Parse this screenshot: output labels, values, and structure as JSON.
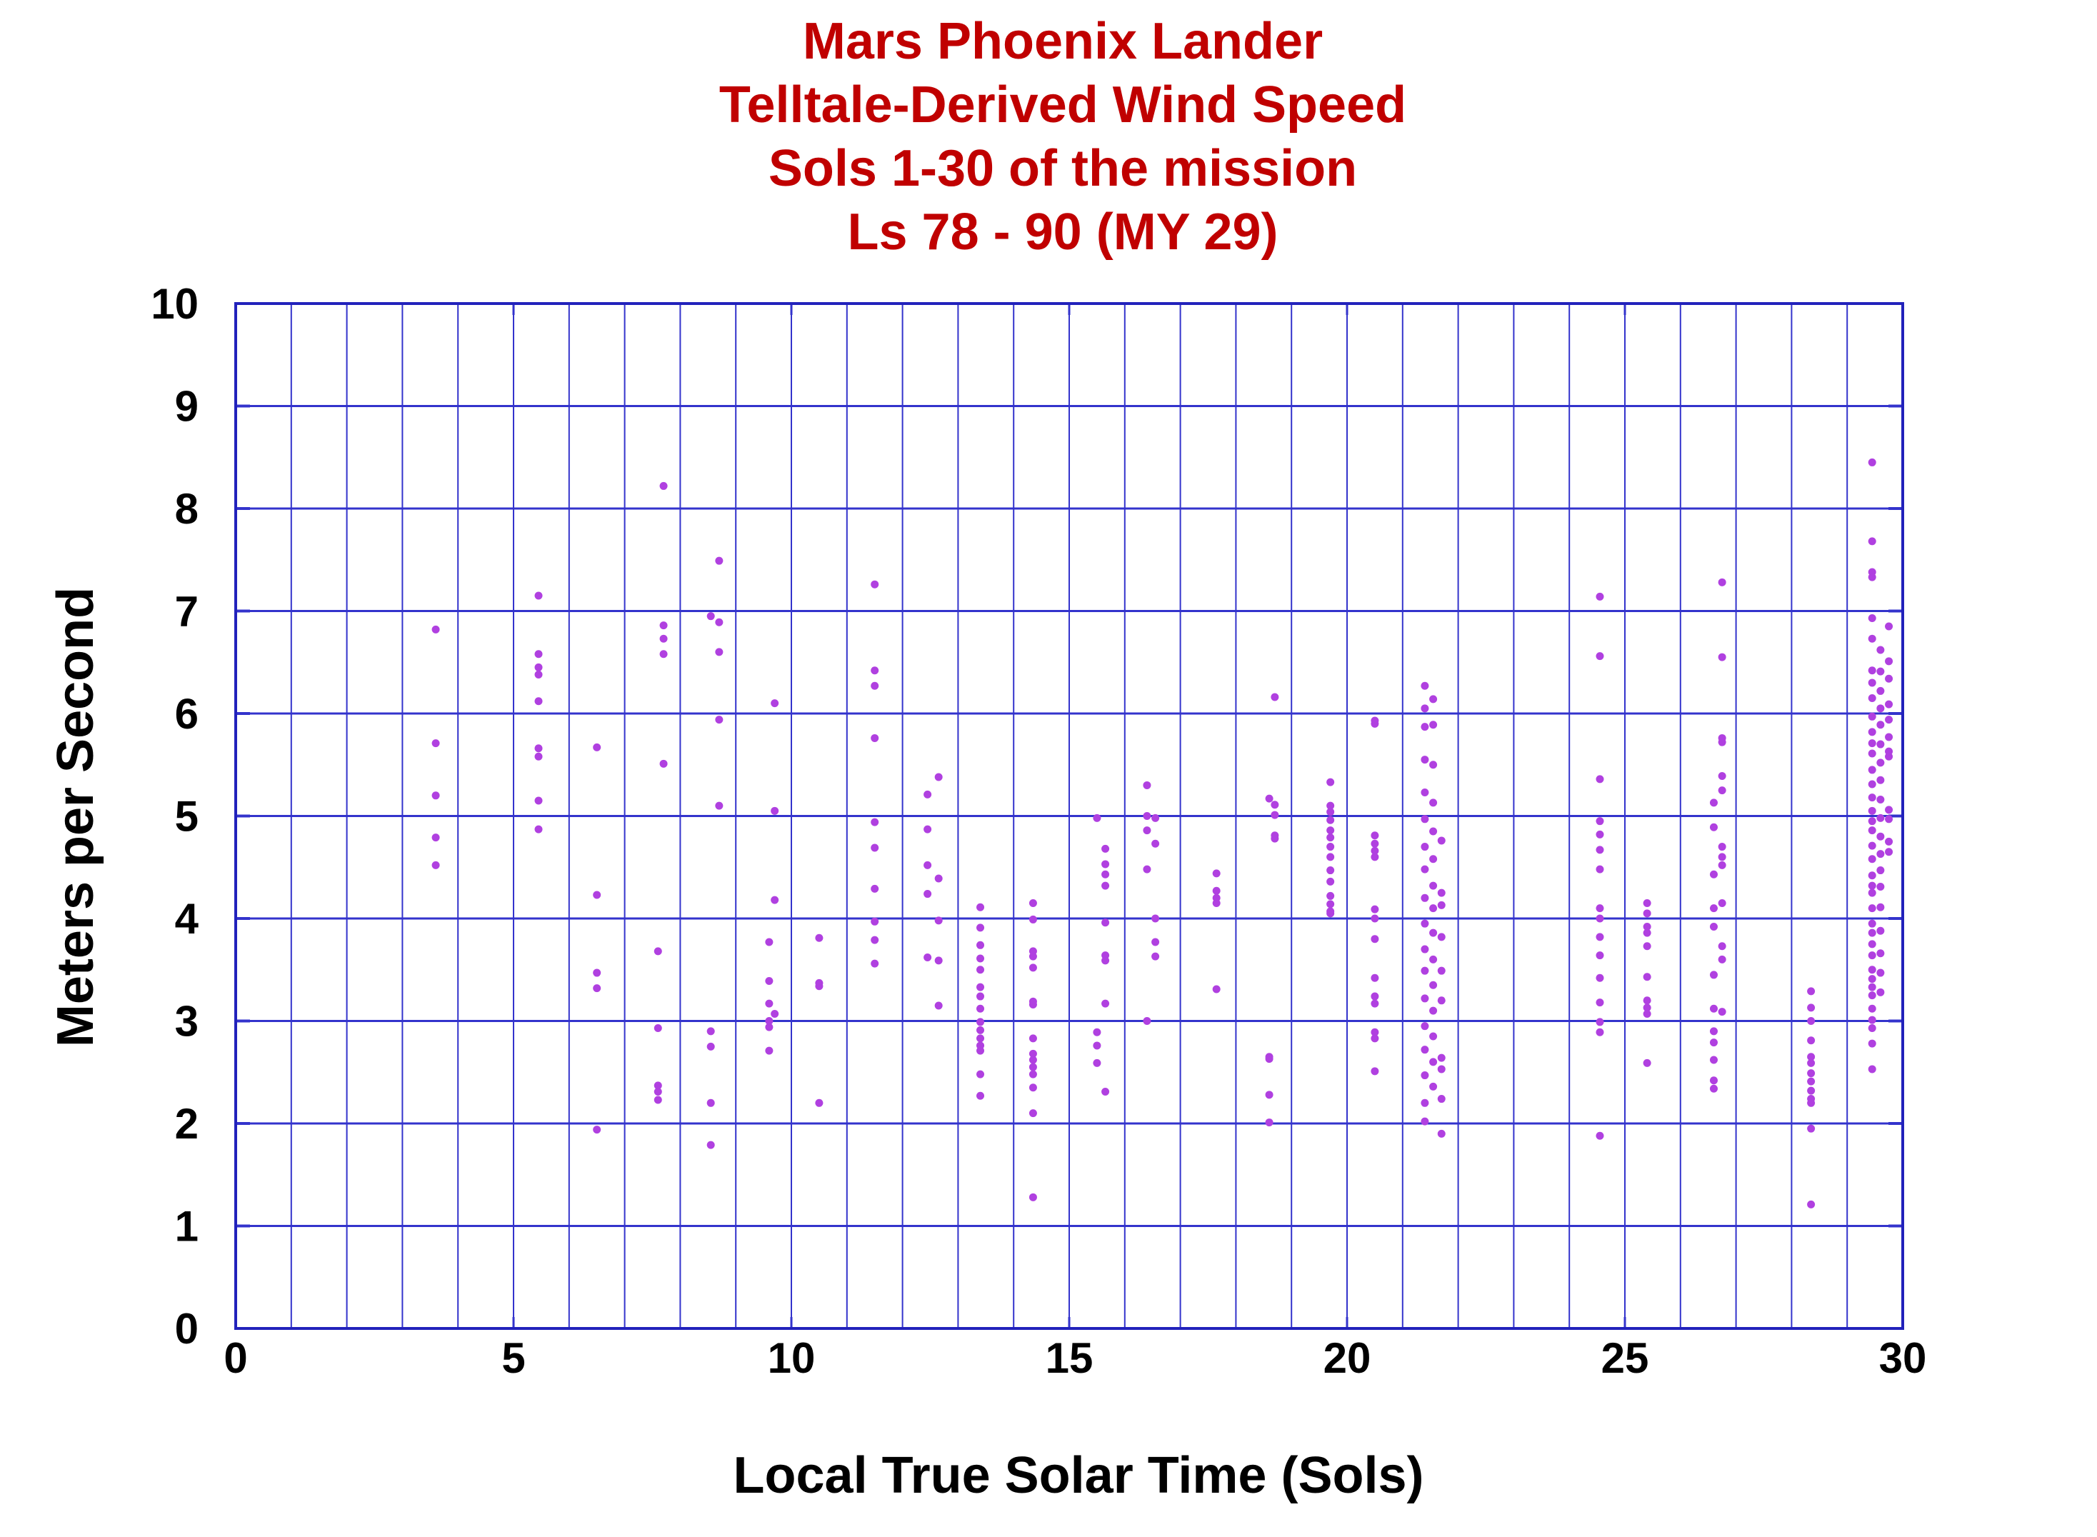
{
  "chart_data": {
    "type": "scatter",
    "title_lines": [
      "Mars Phoenix Lander",
      "Telltale-Derived Wind Speed",
      "Sols 1-30 of the mission",
      "Ls 78 - 90 (MY 29)"
    ],
    "xlabel": "Local True Solar Time (Sols)",
    "ylabel": "Meters per Second",
    "xlim": [
      0,
      30
    ],
    "ylim": [
      0,
      10
    ],
    "xticks": [
      "0",
      "5",
      "10",
      "15",
      "20",
      "25",
      "30"
    ],
    "yticks": [
      "0",
      "1",
      "2",
      "3",
      "4",
      "5",
      "6",
      "7",
      "8",
      "9",
      "10"
    ],
    "x_minor_grid_step": 1,
    "y_grid_step": 1,
    "grid": true,
    "colors": {
      "grid": "#3333cc",
      "points": "#b040e0",
      "title": "#c00000"
    },
    "columns": [
      {
        "x": 3.6,
        "y": [
          6.82,
          5.71,
          5.2,
          4.79,
          4.52
        ]
      },
      {
        "x": 5.45,
        "y": [
          7.15,
          6.58,
          6.45,
          6.38,
          6.12,
          5.66,
          5.58,
          5.15,
          4.87
        ]
      },
      {
        "x": 6.5,
        "y": [
          5.67,
          4.23,
          3.47,
          3.32,
          1.94
        ]
      },
      {
        "x": 7.6,
        "y": [
          3.68,
          2.93,
          2.37,
          2.31,
          2.23
        ]
      },
      {
        "x": 7.7,
        "y": [
          8.22,
          6.86,
          6.73,
          6.58,
          5.51
        ]
      },
      {
        "x": 8.55,
        "y": [
          6.95,
          2.9,
          2.75,
          2.2,
          1.79
        ]
      },
      {
        "x": 8.7,
        "y": [
          7.49,
          6.89,
          6.6,
          5.94,
          5.1
        ]
      },
      {
        "x": 9.6,
        "y": [
          3.77,
          3.39,
          3.17,
          3.0,
          2.94,
          2.71
        ]
      },
      {
        "x": 9.7,
        "y": [
          6.1,
          5.05,
          4.18,
          3.07
        ]
      },
      {
        "x": 10.5,
        "y": [
          3.81,
          3.37,
          3.34,
          2.2
        ]
      },
      {
        "x": 11.5,
        "y": [
          7.26,
          6.42,
          6.27,
          5.76,
          4.94,
          4.69,
          4.29,
          3.97,
          3.79,
          3.56
        ]
      },
      {
        "x": 12.45,
        "y": [
          5.21,
          4.87,
          4.52,
          4.24,
          3.62
        ]
      },
      {
        "x": 12.65,
        "y": [
          5.38,
          4.39,
          3.98,
          3.59,
          3.15
        ]
      },
      {
        "x": 13.4,
        "y": [
          4.11,
          3.91,
          3.74,
          3.61,
          3.5,
          3.33,
          3.24,
          3.12,
          2.99,
          2.91,
          2.83,
          2.76,
          2.71,
          2.48,
          2.27
        ]
      },
      {
        "x": 14.35,
        "y": [
          4.15,
          3.99,
          3.68,
          3.63,
          3.52,
          3.19,
          3.16,
          2.83,
          2.68,
          2.62,
          2.55,
          2.48,
          2.35,
          2.1,
          1.28
        ]
      },
      {
        "x": 15.5,
        "y": [
          4.98,
          2.89,
          2.76,
          2.59
        ]
      },
      {
        "x": 15.65,
        "y": [
          4.68,
          4.53,
          4.43,
          4.32,
          3.96,
          3.64,
          3.59,
          3.17,
          2.31
        ]
      },
      {
        "x": 16.4,
        "y": [
          5.3,
          5.0,
          4.86,
          4.48,
          3.0
        ]
      },
      {
        "x": 16.55,
        "y": [
          4.98,
          4.73,
          4.0,
          3.77,
          3.63
        ]
      },
      {
        "x": 17.65,
        "y": [
          4.44,
          4.27,
          4.2,
          4.15,
          3.31
        ]
      },
      {
        "x": 18.6,
        "y": [
          5.17,
          2.65,
          2.63,
          2.28,
          2.01
        ]
      },
      {
        "x": 18.7,
        "y": [
          6.16,
          5.11,
          5.01,
          4.81,
          4.78
        ]
      },
      {
        "x": 19.7,
        "y": [
          5.33,
          5.1,
          5.04,
          4.96,
          4.86,
          4.79,
          4.7,
          4.6,
          4.47,
          4.36,
          4.22,
          4.14,
          4.07,
          4.05
        ]
      },
      {
        "x": 20.5,
        "y": [
          5.93,
          5.9,
          4.81,
          4.73,
          4.66,
          4.6,
          4.09,
          4.0,
          3.8,
          3.42,
          3.24,
          3.17,
          2.89,
          2.83,
          2.51
        ]
      },
      {
        "x": 21.4,
        "y": [
          6.27,
          6.05,
          5.87,
          5.55,
          5.23,
          4.97,
          4.7,
          4.48,
          4.2,
          3.95,
          3.7,
          3.49,
          3.22,
          2.95,
          2.72,
          2.47,
          2.2,
          2.02
        ]
      },
      {
        "x": 21.55,
        "y": [
          6.14,
          5.89,
          5.5,
          5.13,
          4.85,
          4.58,
          4.32,
          4.1,
          3.86,
          3.6,
          3.35,
          3.1,
          2.85,
          2.6,
          2.36
        ]
      },
      {
        "x": 21.7,
        "y": [
          4.76,
          4.25,
          4.13,
          3.82,
          3.49,
          3.2,
          2.64,
          2.53,
          2.24,
          1.9
        ]
      },
      {
        "x": 24.55,
        "y": [
          7.14,
          6.56,
          5.36,
          4.95,
          4.82,
          4.67,
          4.48,
          4.1,
          4.0,
          3.82,
          3.64,
          3.42,
          3.18,
          2.99,
          2.89,
          1.88
        ]
      },
      {
        "x": 25.4,
        "y": [
          4.15,
          4.05,
          3.92,
          3.86,
          3.73,
          3.43,
          3.2,
          3.13,
          3.07,
          2.59
        ]
      },
      {
        "x": 26.6,
        "y": [
          5.13,
          4.89,
          4.43,
          4.1,
          3.92,
          3.45,
          3.12,
          2.9,
          2.79,
          2.62,
          2.42,
          2.34
        ]
      },
      {
        "x": 26.75,
        "y": [
          7.28,
          6.55,
          5.76,
          5.72,
          5.39,
          5.25,
          4.7,
          4.6,
          4.52,
          4.15,
          3.73,
          3.6,
          3.09
        ]
      },
      {
        "x": 28.35,
        "y": [
          3.29,
          3.13,
          3.0,
          2.81,
          2.65,
          2.59,
          2.49,
          2.41,
          2.32,
          2.24,
          2.2,
          1.95,
          1.21
        ]
      },
      {
        "x": 29.45,
        "y": [
          8.45,
          7.68,
          7.38,
          7.33,
          6.93,
          6.73,
          6.42,
          6.3,
          6.15,
          5.97,
          5.82,
          5.71,
          5.61,
          5.45,
          5.31,
          5.18,
          5.05,
          4.95,
          4.86,
          4.71,
          4.58,
          4.42,
          4.32,
          4.25,
          4.1,
          3.95,
          3.86,
          3.75,
          3.64,
          3.5,
          3.41,
          3.33,
          3.25,
          3.12,
          3.01,
          2.93,
          2.78,
          2.53
        ]
      },
      {
        "x": 29.6,
        "y": [
          6.62,
          6.41,
          6.22,
          6.05,
          5.89,
          5.7,
          5.52,
          5.35,
          5.16,
          4.98,
          4.8,
          4.63,
          4.47,
          4.31,
          4.11,
          3.88,
          3.66,
          3.47,
          3.28
        ]
      },
      {
        "x": 29.75,
        "y": [
          6.85,
          6.51,
          6.34,
          6.09,
          5.94,
          5.77,
          5.63,
          5.58,
          5.06,
          4.97,
          4.75,
          4.65
        ]
      }
    ]
  }
}
